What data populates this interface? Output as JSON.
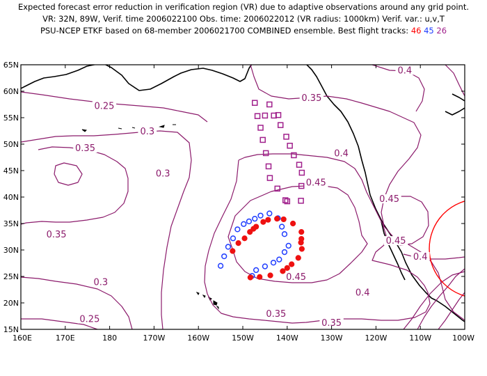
{
  "title": {
    "line1": "Expected forecast error reduction in verification region (VR) due to adaptive observations around any grid point.",
    "line2": "VR: 32N, 89W, Verif. time 2006022100   Obs. time: 2006022012 (VR radius: 1000km)   Verif. var.: u,v,T",
    "line3_prefix": "PSU-NCEP ETKF based on 68-member 2006021700 COMBINED ensemble.  Best flight tracks:",
    "track_ids": [
      "46",
      "45",
      "26"
    ]
  },
  "map": {
    "lon_range": [
      160,
      260
    ],
    "lat_range": [
      15,
      65
    ],
    "lat_labels": [
      "15N",
      "20N",
      "25N",
      "30N",
      "35N",
      "40N",
      "45N",
      "50N",
      "55N",
      "60N",
      "65N"
    ],
    "lon_labels": [
      "160E",
      "170E",
      "180",
      "170W",
      "160W",
      "150W",
      "140W",
      "130W",
      "120W",
      "110W",
      "100W"
    ],
    "contour_labels": [
      {
        "text": "0.25",
        "lon": 178.8,
        "lat": 56.8
      },
      {
        "text": "0.3",
        "lon": 188.5,
        "lat": 52.0
      },
      {
        "text": "0.35",
        "lon": 174.5,
        "lat": 48.8
      },
      {
        "text": "0.3",
        "lon": 192.0,
        "lat": 44.0
      },
      {
        "text": "0.35",
        "lon": 168.0,
        "lat": 32.5
      },
      {
        "text": "0.3",
        "lon": 178.0,
        "lat": 23.5
      },
      {
        "text": "0.25",
        "lon": 175.5,
        "lat": 16.5
      },
      {
        "text": "0.35",
        "lon": 225.5,
        "lat": 58.3
      },
      {
        "text": "0.4",
        "lon": 232.2,
        "lat": 47.8
      },
      {
        "text": "0.45",
        "lon": 226.5,
        "lat": 42.3
      },
      {
        "text": "0.45",
        "lon": 243.0,
        "lat": 39.2
      },
      {
        "text": "0.45",
        "lon": 244.5,
        "lat": 31.3
      },
      {
        "text": "0.45",
        "lon": 222.0,
        "lat": 24.5
      },
      {
        "text": "0.4",
        "lon": 250.0,
        "lat": 28.3
      },
      {
        "text": "0.4",
        "lon": 237.0,
        "lat": 21.5
      },
      {
        "text": "0.35",
        "lon": 217.5,
        "lat": 17.5
      },
      {
        "text": "0.35",
        "lon": 230.0,
        "lat": 15.8
      },
      {
        "text": "0.4",
        "lon": 246.5,
        "lat": 63.5
      }
    ],
    "track_46_red": [
      [
        207.7,
        29.8
      ],
      [
        209.0,
        31.3
      ],
      [
        210.4,
        32.2
      ],
      [
        211.6,
        33.4
      ],
      [
        212.4,
        34.0
      ],
      [
        213.0,
        34.4
      ],
      [
        214.6,
        35.3
      ],
      [
        215.7,
        35.7
      ],
      [
        217.7,
        35.9
      ],
      [
        219.2,
        35.8
      ],
      [
        221.3,
        35.0
      ],
      [
        223.2,
        33.4
      ],
      [
        223.2,
        32.1
      ],
      [
        223.1,
        31.4
      ],
      [
        223.3,
        30.2
      ],
      [
        222.5,
        28.5
      ],
      [
        221.0,
        27.3
      ],
      [
        220.0,
        26.6
      ],
      [
        219.0,
        26.0
      ],
      [
        216.2,
        25.2
      ],
      [
        213.8,
        24.9
      ],
      [
        211.7,
        24.8
      ]
    ],
    "track_45_blue": [
      [
        205.0,
        27.0
      ],
      [
        205.8,
        28.8
      ],
      [
        206.7,
        30.6
      ],
      [
        207.8,
        32.2
      ],
      [
        208.8,
        33.9
      ],
      [
        210.2,
        34.9
      ],
      [
        211.4,
        35.4
      ],
      [
        212.7,
        35.9
      ],
      [
        214.0,
        36.5
      ],
      [
        216.0,
        36.9
      ],
      [
        217.9,
        36.0
      ],
      [
        218.8,
        34.4
      ],
      [
        219.4,
        33.0
      ],
      [
        220.3,
        30.8
      ],
      [
        219.4,
        29.6
      ],
      [
        218.2,
        28.2
      ],
      [
        216.9,
        27.6
      ],
      [
        215.0,
        26.9
      ],
      [
        213.0,
        26.2
      ],
      [
        212.1,
        25.1
      ]
    ],
    "track_26_purple": [
      [
        212.7,
        57.8
      ],
      [
        213.3,
        55.3
      ],
      [
        214.0,
        53.1
      ],
      [
        214.5,
        50.8
      ],
      [
        215.2,
        48.3
      ],
      [
        215.8,
        45.8
      ],
      [
        216.1,
        43.6
      ],
      [
        217.8,
        41.6
      ],
      [
        218.5,
        53.6
      ],
      [
        219.8,
        51.4
      ],
      [
        220.6,
        49.7
      ],
      [
        221.5,
        47.9
      ],
      [
        222.7,
        46.1
      ],
      [
        223.3,
        44.6
      ],
      [
        223.2,
        42.1
      ],
      [
        223.1,
        39.3
      ],
      [
        220.0,
        39.2
      ],
      [
        217.0,
        55.4
      ],
      [
        216.0,
        57.5
      ],
      [
        215.0,
        55.4
      ],
      [
        218.0,
        55.5
      ],
      [
        219.6,
        39.4
      ]
    ]
  }
}
